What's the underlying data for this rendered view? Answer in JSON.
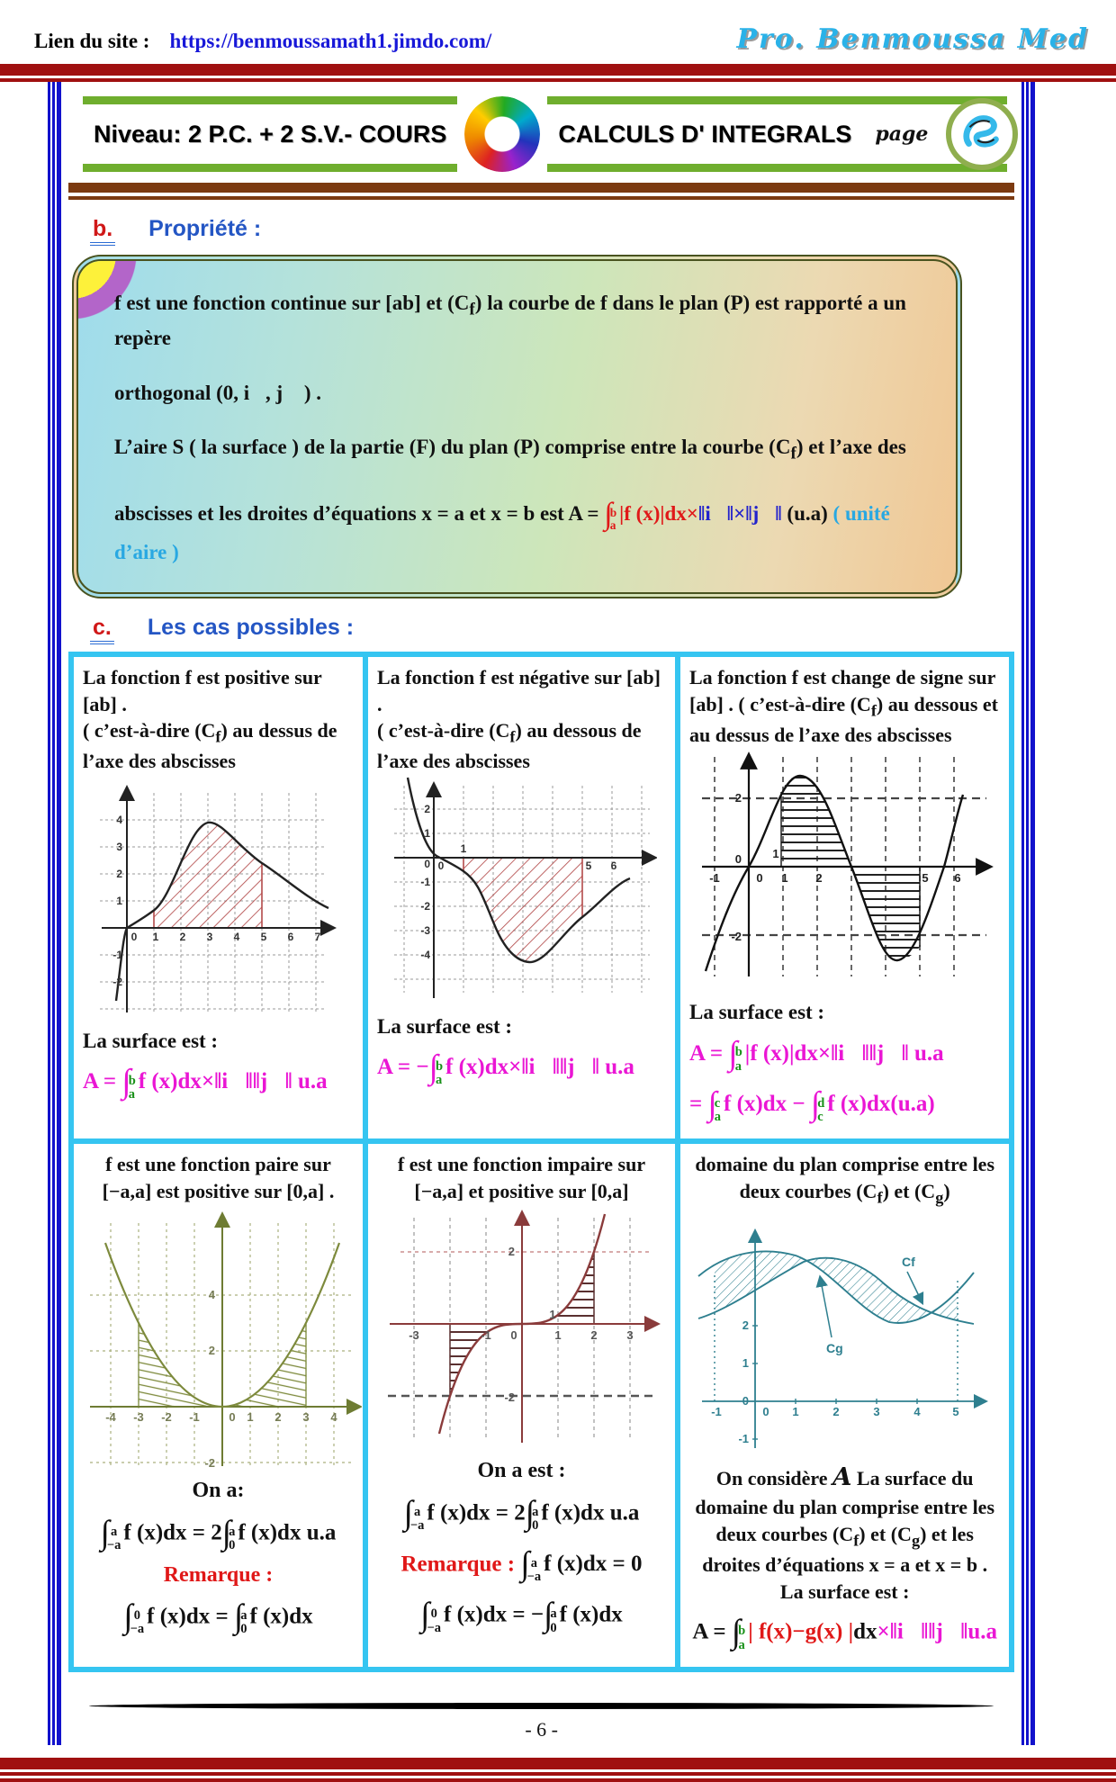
{
  "header": {
    "site_label": "Lien du site :",
    "site_url": "https://benmoussamath1.jimdo.com/",
    "author": "Pro. Benmoussa Med"
  },
  "titlebar": {
    "left_title": "Niveau: 2 P.C. + 2 S.V.- COURS",
    "right_title": "CALCULS D' INTEGRALS",
    "page_word": "page",
    "center_logo": "rainbow-nine-logo",
    "right_badge": "blue-scribble-badge"
  },
  "section_b": {
    "marker": "b.",
    "title": "Propriété :",
    "line1_html": "f est une fonction continue sur [ab]  et  (C<sub>f</sub>)  la courbe de f  dans le plan  (P)  est rapporté a un repère",
    "line2_html": "orthogonal  (0, i⃗, j⃗ ) .",
    "line3_html": "L’aire S  ( la surface ) de la partie (F) du plan (P)  comprise entre la courbe (C<sub>f</sub>)  et l’axe des",
    "line4_html": "abscisses et les droites d’équations  x = a  et  x = b est  A = <span class='r'><i class='ig'>∫</i><span class='lims'><i>b</i><i>a</i></span>|f (x)|dx×</span><span class='bl'>‖i⃗‖×‖j⃗‖</span>  (u.a) <span class='c'>( unité d’aire )</span>"
  },
  "section_c": {
    "marker": "c.",
    "title": "Les cas possibles :",
    "cells": [
      {
        "heading_html": "La fonction f est positive sur [ab] .",
        "sub_html": "( c’est-à-dire (C<sub>f</sub>)  au dessus de l’axe des abscisses",
        "surface_label": "La surface est :",
        "formula_html": "<span class='m'>A = <i class='ig'>∫</i><span class='lims g'><i>b</i><i>a</i></span>f (x)dx×‖i⃗‖‖j⃗‖ u.a</span>"
      },
      {
        "heading_html": "La fonction f est négative sur [ab] .",
        "sub_html": "( c’est-à-dire (C<sub>f</sub>)  au dessous de l’axe des abscisses",
        "surface_label": "La surface est :",
        "formula_html": "<span class='m'>A = −<i class='ig'>∫</i><span class='lims g'><i>b</i><i>a</i></span>f (x)dx×‖i⃗‖‖j⃗‖ u.a</span>"
      },
      {
        "heading_html": "La fonction f est change de signe sur [ab] . ( c’est-à-dire (C<sub>f</sub>)  au dessous et au dessus de l’axe des abscisses",
        "surface_label": "La surface est :",
        "formula_html": "<span class='m'>A = <i class='ig'>∫</i><span class='lims g'><i>b</i><i>a</i></span>|f (x)|dx×‖i⃗‖‖j⃗‖ u.a</span>",
        "formula2_html": "<span class='m'>= <i class='ig'>∫</i><span class='lims g'><i>c</i><i>a</i></span>f (x)dx − <i class='ig'>∫</i><span class='lims g'><i>d</i><i>c</i></span>f (x)dx(u.a)</span>"
      },
      {
        "heading_html": "f  est une fonction paire sur [−a,a]  est positive sur [0,a] .",
        "on_label": "On a:",
        "formula_html": "<i class='ig'>∫</i><span class='lims'><i>a</i><i>−a</i></span>f (x)dx = 2<i class='ig'>∫</i><span class='lims'><i>a</i><i>0</i></span>f (x)dx u.a",
        "remark_label": "Remarque :",
        "formula2_html": "<i class='ig'>∫</i><span class='lims'><i>0</i><i>−a</i></span>f (x)dx = <i class='ig'>∫</i><span class='lims'><i>a</i><i>0</i></span>f (x)dx"
      },
      {
        "heading_html": "f  est une fonction impaire sur [−a,a]  et positive sur [0,a]",
        "on_label": "On a est :",
        "formula_html": "<i class='ig'>∫</i><span class='lims'><i>a</i><i>−a</i></span>f (x)dx = 2<i class='ig'>∫</i><span class='lims'><i>a</i><i>0</i></span>f (x)dx u.a",
        "remark_label": "Remarque :",
        "formula2_html": "<i class='ig'>∫</i><span class='lims'><i>a</i><i>−a</i></span>f (x)dx = 0",
        "formula3_html": "<i class='ig'>∫</i><span class='lims'><i>0</i><i>−a</i></span>f (x)dx = −<i class='ig'>∫</i><span class='lims'><i>a</i><i>0</i></span>f (x)dx"
      },
      {
        "heading_html": "domaine du plan comprise entre les deux courbes (C<sub>f</sub>)  et  (C<sub>g</sub>)",
        "para_html": "On considère <i class='scriptA'>A</i>  La surface du domaine du plan comprise entre les deux courbes (C<sub>f</sub>) et (C<sub>g</sub>) et  les droites d’équations  x = a  et  x = b .  La surface est :",
        "formula_html": "A = <i class='ig'>∫</i><span class='lims g'><i>b</i><i>a</i></span><span class='r'>| f(x)−g(x) |</span>dx<span class='m'>×‖i⃗‖‖j⃗‖u.a</span>"
      }
    ]
  },
  "footer": {
    "page_number": "- 6 -"
  },
  "colors": {
    "header_rule": "#a01010",
    "title_green": "#6fae2e",
    "brown_rule": "#7c3a10",
    "frame_blue": "#1212cc",
    "grid_cyan": "#35c5f1",
    "magenta": "#ea16d4",
    "red": "#e01818",
    "green_limits": "#189018",
    "blue": "#2222cc",
    "cyan_note": "#28a8e2",
    "section_blue": "#2456c4",
    "marker_red": "#d01818"
  },
  "chart_data": [
    {
      "type": "line",
      "name": "f positive sur [a,b]",
      "curve_color": "#222222",
      "hatch": "diagonal-red",
      "x": [
        -0.4,
        0,
        1,
        2,
        3,
        4,
        5,
        6,
        7.4
      ],
      "y": [
        -2.7,
        0,
        0.65,
        2.8,
        3.9,
        3.2,
        2.4,
        1.55,
        0.8
      ],
      "shaded_x_range": [
        1,
        5
      ],
      "grid": "dashed",
      "xticks": [
        "0",
        "1",
        "2",
        "3",
        "4",
        "5",
        "6",
        "7"
      ],
      "yticks": [
        "4",
        "3",
        "2",
        "1",
        "-1",
        "-2"
      ]
    },
    {
      "type": "line",
      "name": "f négative sur [a,b]",
      "curve_color": "#222222",
      "hatch": "diagonal-red",
      "x": [
        -0.9,
        0,
        0.35,
        1,
        2,
        3,
        3.4,
        4,
        5,
        6,
        6.6
      ],
      "y": [
        3.3,
        0.1,
        0,
        -0.55,
        -2.7,
        -4.2,
        -4.3,
        -3.95,
        -2.45,
        -1.25,
        -0.9
      ],
      "shaded_x_range": [
        1,
        5
      ],
      "grid": "dashed",
      "xticks": [
        "0",
        "5",
        "6"
      ],
      "above_axis_label": "1",
      "yticks": [
        "2",
        "1",
        "0",
        "-1",
        "-2",
        "-3",
        "-4"
      ]
    },
    {
      "type": "line",
      "name": "f change de signe sur [a,b]",
      "curve_color": "#111111",
      "hatch": "horizontal-black",
      "zeros": [
        0,
        3,
        5.7
      ],
      "peak": [
        1.5,
        2.65
      ],
      "trough": [
        4.35,
        -2.75
      ],
      "shaded": [
        [
          1,
          3,
          "above"
        ],
        [
          3,
          5,
          "below"
        ]
      ],
      "grid": "vertical-dashed",
      "xticks": [
        "-1",
        "0",
        "1",
        "2",
        "5",
        "6"
      ],
      "above_axis_label": "1",
      "yticks": [
        "2",
        "0",
        "-2"
      ]
    },
    {
      "type": "line",
      "name": "fonction paire (allure y = x²/3)",
      "curve_color": "#7d8a3c",
      "hatch": "diagonal-olive",
      "shaded": [
        [
          -3,
          0
        ],
        [
          0,
          3
        ]
      ],
      "grid": "dashed",
      "xticks": [
        "-4",
        "-3",
        "-2",
        "-1",
        "0",
        "1",
        "2",
        "3",
        "4"
      ],
      "yticks": [
        "4",
        "2",
        "-2"
      ]
    },
    {
      "type": "line",
      "name": "fonction impaire (allure y = x³/4)",
      "curve_color": "#8a3b3b",
      "hatch": "horizontal-darkred",
      "shaded": [
        [
          -2,
          0,
          "below"
        ],
        [
          0,
          2,
          "above"
        ]
      ],
      "grid": "dashed",
      "xticks": [
        "-3",
        "-1",
        "0",
        "1",
        "2",
        "3"
      ],
      "above_axis_label": "1",
      "yticks": [
        "2",
        "-2"
      ]
    },
    {
      "type": "line",
      "name": "domaine entre deux courbes",
      "curve_color": "#2e7f8f",
      "hatch": "diagonal-teal",
      "curves": [
        "Cf",
        "Cg"
      ],
      "shaded_x_range": [
        -1,
        5
      ],
      "grid": "none",
      "xticks": [
        "-1",
        "0",
        "1",
        "2",
        "3",
        "4",
        "5"
      ],
      "yticks": [
        "2",
        "1",
        "0",
        "-1"
      ]
    }
  ]
}
